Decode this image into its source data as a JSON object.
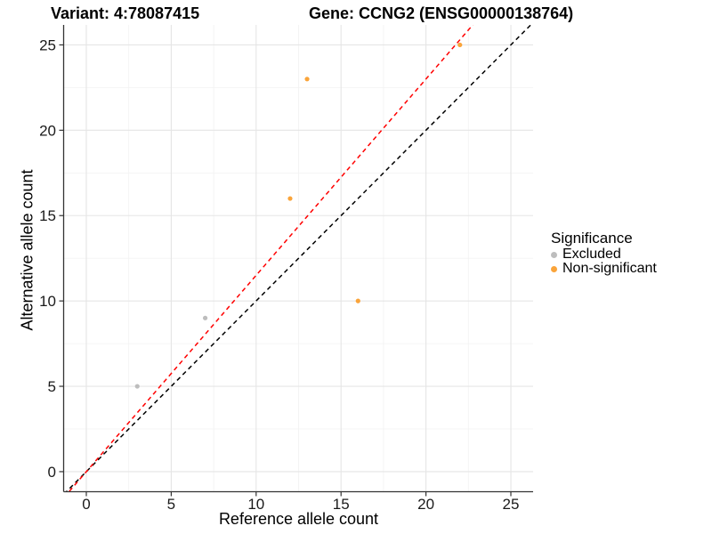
{
  "titles": {
    "variant": "Variant: 4:78087415",
    "gene": "Gene: CCNG2 (ENSG00000138764)"
  },
  "chart_data": {
    "type": "scatter",
    "xlabel": "Reference allele count",
    "ylabel": "Alternative allele count",
    "xlim": [
      -1.31,
      26.31
    ],
    "ylim": [
      -1.15,
      26.17
    ],
    "x_ticks": [
      0,
      5,
      10,
      15,
      20,
      25
    ],
    "y_ticks": [
      0,
      5,
      10,
      15,
      20,
      25
    ],
    "x_minor_ticks": [
      2.5,
      7.5,
      12.5,
      17.5,
      22.5
    ],
    "y_minor_ticks": [
      2.5,
      7.5,
      12.5,
      17.5,
      22.5
    ],
    "grid": true,
    "series": [
      {
        "name": "Excluded",
        "color": "#BDBDBD",
        "points": [
          [
            3,
            5
          ],
          [
            7,
            9
          ]
        ]
      },
      {
        "name": "Non-significant",
        "color": "#FAA43A",
        "points": [
          [
            12,
            16
          ],
          [
            13,
            23
          ],
          [
            16,
            10
          ],
          [
            22,
            25
          ]
        ]
      }
    ],
    "reference_lines": [
      {
        "name": "identity-line",
        "slope": 1,
        "intercept": 0,
        "color": "#000000",
        "style": "dashed"
      },
      {
        "name": "expected-ratio-line",
        "slope": 1.15,
        "intercept": 0,
        "color": "#FF0000",
        "style": "dashed"
      }
    ],
    "legend": {
      "title": "Significance",
      "position": "right",
      "items": [
        {
          "label": "Excluded",
          "color": "#BDBDBD"
        },
        {
          "label": "Non-significant",
          "color": "#FAA43A"
        }
      ]
    }
  },
  "colors": {
    "background": "#FFFFFF",
    "grid_major": "#E5E5E5",
    "grid_minor": "#F2F2F2",
    "axis_line": "#333333",
    "tick_label": "#1A1A1A"
  }
}
